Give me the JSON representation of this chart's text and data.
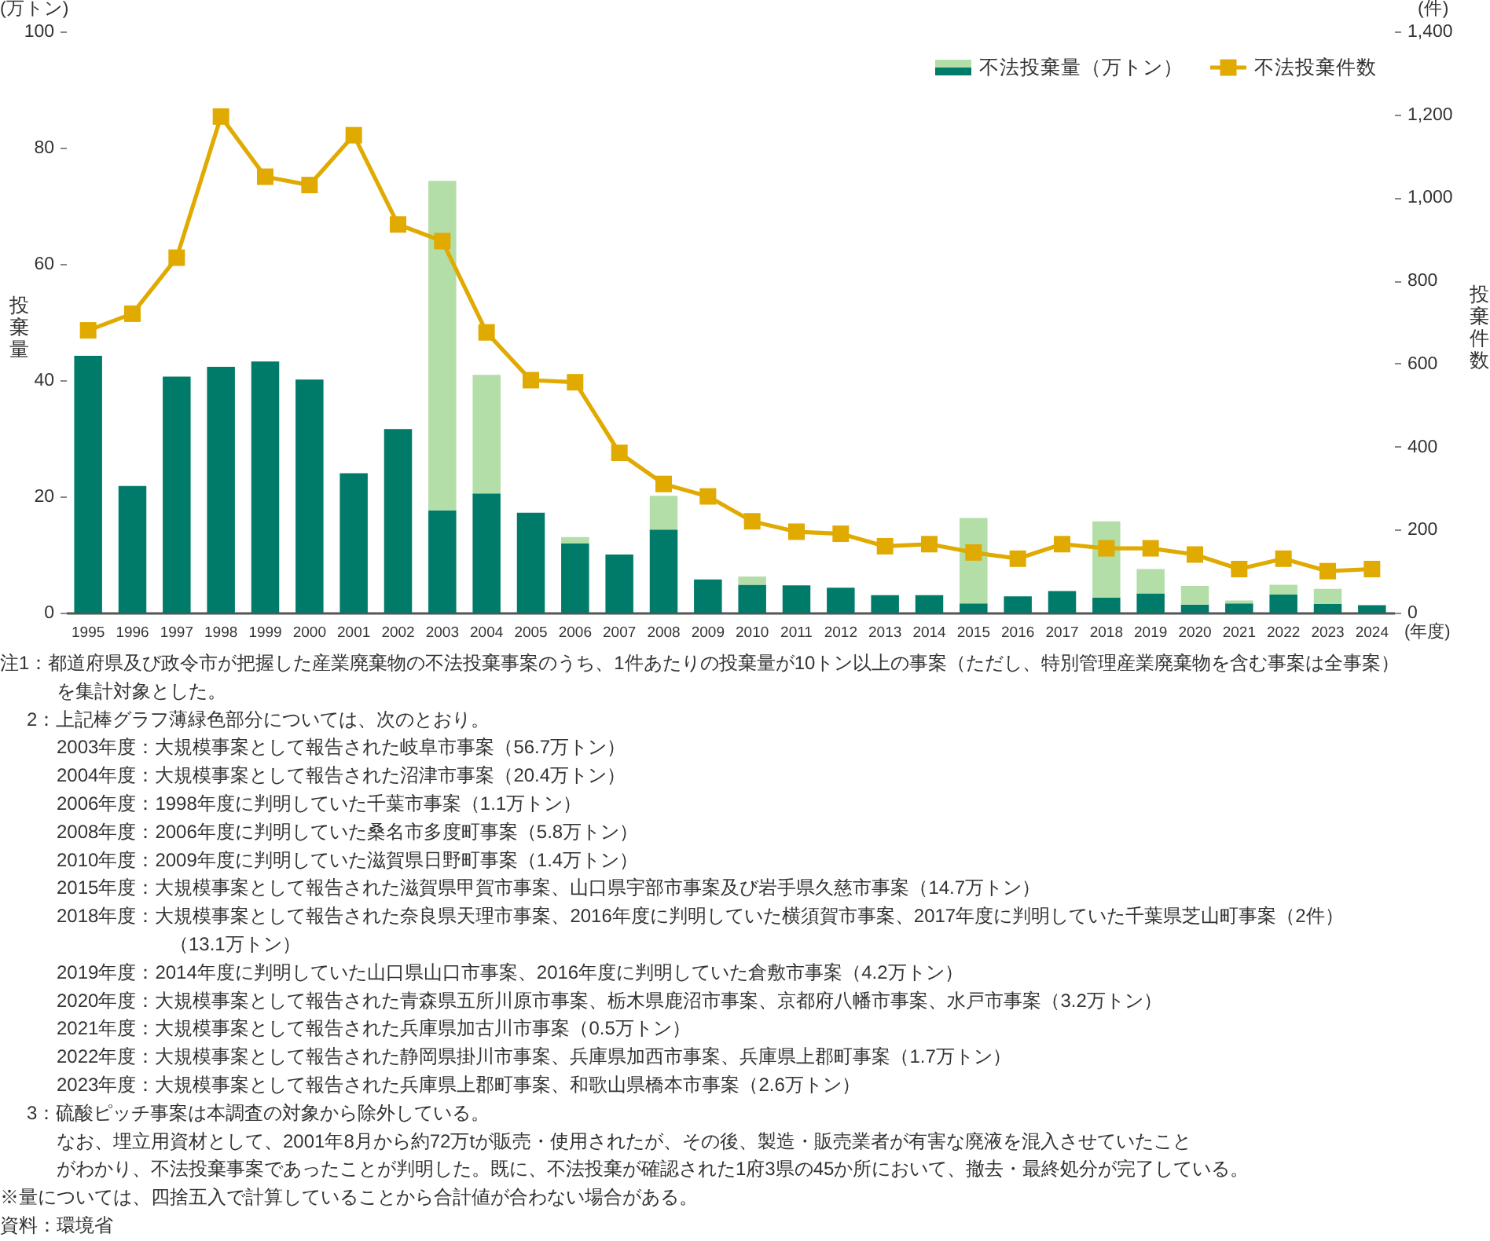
{
  "chart_data": {
    "type": "bar",
    "categories": [
      "1995",
      "1996",
      "1997",
      "1998",
      "1999",
      "2000",
      "2001",
      "2002",
      "2003",
      "2004",
      "2005",
      "2006",
      "2007",
      "2008",
      "2009",
      "2010",
      "2011",
      "2012",
      "2013",
      "2014",
      "2015",
      "2016",
      "2017",
      "2018",
      "2019",
      "2020",
      "2021",
      "2022",
      "2023",
      "2024"
    ],
    "xlabel": "(年度)",
    "ylabel": "投棄量",
    "y2label": "投棄件数",
    "ylim": [
      0,
      100
    ],
    "yticks": [
      0,
      20,
      40,
      60,
      80,
      100
    ],
    "y2lim": [
      0,
      1400
    ],
    "y2ticks": [
      0,
      200,
      400,
      600,
      800,
      {
        "value": 1000,
        "label": "1,000"
      },
      {
        "value": 1200,
        "label": "1,200"
      },
      {
        "value": 1400,
        "label": "1,400"
      }
    ],
    "stacked": true,
    "legend": "top right",
    "marker": "square",
    "series": [
      {
        "name": "不法投棄量（万トン）",
        "color": "#007a69",
        "values": [
          44.2,
          21.8,
          40.6,
          42.3,
          43.2,
          40.1,
          24.0,
          31.6,
          17.6,
          20.5,
          17.2,
          11.9,
          10.0,
          14.3,
          5.7,
          4.8,
          4.7,
          4.3,
          3.0,
          3.0,
          1.6,
          2.8,
          3.7,
          2.6,
          3.3,
          1.4,
          1.6,
          3.1,
          1.5,
          1.3
        ]
      },
      {
        "color": "#b3dea8",
        "values": [
          null,
          null,
          null,
          null,
          null,
          null,
          null,
          null,
          56.7,
          20.4,
          null,
          1.1,
          null,
          5.8,
          null,
          1.4,
          null,
          null,
          null,
          null,
          14.7,
          null,
          null,
          13.1,
          4.2,
          3.2,
          0.5,
          1.7,
          2.6,
          null
        ]
      },
      {
        "name": "不法投棄件数",
        "type": "line",
        "axis": "y2",
        "color": "#e0aa00",
        "values": [
          680,
          720,
          855,
          1195,
          1050,
          1030,
          1150,
          935,
          895,
          675,
          560,
          555,
          385,
          310,
          280,
          220,
          195,
          190,
          160,
          165,
          145,
          130,
          165,
          155,
          155,
          140,
          105,
          130,
          100,
          105
        ]
      }
    ],
    "annotations": [
      "(万トン)",
      "(件)",
      "注1：都道府県及び政令市が把握した産業廃棄物の不法投棄事案のうち、1件あたりの投棄量が10トン以上の事案（ただし、特別管理産業廃棄物を含む事案は全事案）",
      "を集計対象とした。",
      "2：上記棒グラフ薄緑色部分については、次のとおり。",
      "2003年度：大規模事案として報告された岐阜市事案（56.7万トン）",
      "2004年度：大規模事案として報告された沼津市事案（20.4万トン）",
      "2006年度：1998年度に判明していた千葉市事案（1.1万トン）",
      "2008年度：2006年度に判明していた桑名市多度町事案（5.8万トン）",
      "2010年度：2009年度に判明していた滋賀県日野町事案（1.4万トン）",
      "2015年度：大規模事案として報告された滋賀県甲賀市事案、山口県宇部市事案及び岩手県久慈市事案（14.7万トン）",
      "2018年度：大規模事案として報告された奈良県天理市事案、2016年度に判明していた横須賀市事案、2017年度に判明していた千葉県芝山町事案（2件）",
      "（13.1万トン）",
      "2019年度：2014年度に判明していた山口県山口市事案、2016年度に判明していた倉敷市事案（4.2万トン）",
      "2020年度：大規模事案として報告された青森県五所川原市事案、栃木県鹿沼市事案、京都府八幡市事案、水戸市事案（3.2万トン）",
      "2021年度：大規模事案として報告された兵庫県加古川市事案（0.5万トン）",
      "2022年度：大規模事案として報告された静岡県掛川市事案、兵庫県加西市事案、兵庫県上郡町事案（1.7万トン）",
      "2023年度：大規模事案として報告された兵庫県上郡町事案、和歌山県橋本市事案（2.6万トン）",
      "3：硫酸ピッチ事案は本調査の対象から除外している。",
      "なお、埋立用資材として、2001年8月から約72万tが販売・使用されたが、その後、製造・販売業者が有害な廃液を混入させていたこと",
      "がわかり、不法投棄事案であったことが判明した。既に、不法投棄が確認された1府3県の45か所において、撤去・最終処分が完了している。",
      "※量については、四捨五入で計算していることから合計値が合わない場合がある。",
      "資料：環境省"
    ]
  }
}
